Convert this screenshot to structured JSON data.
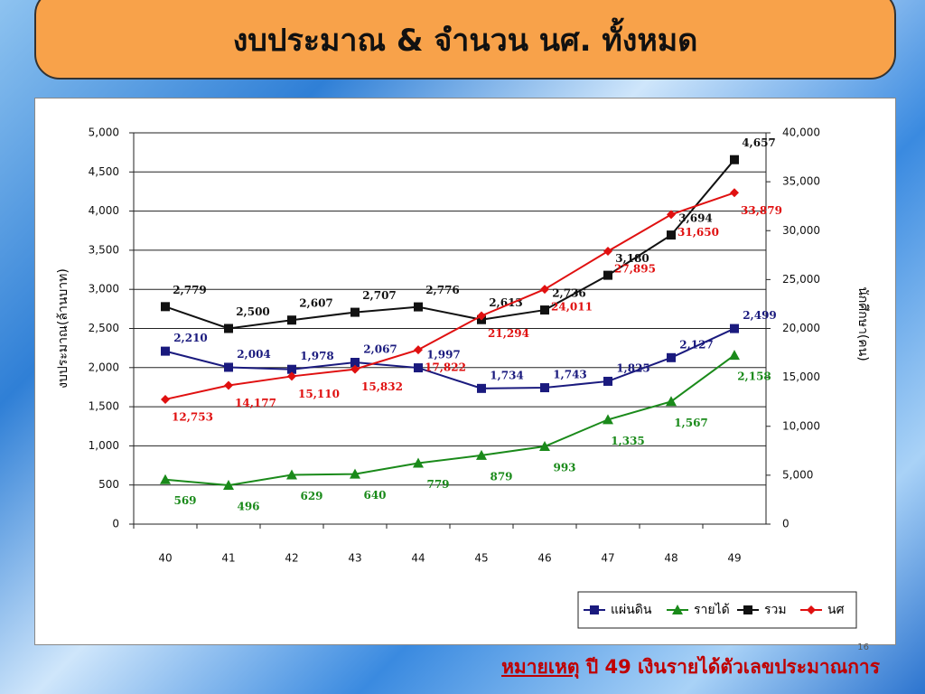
{
  "chart_data": {
    "type": "line",
    "title": "งบประมาณ & จำนวน นศ. ทั้งหมด",
    "y_label": "งบประมาณ(ล้านบาท)",
    "y2_label": "นักศึกษา(คน)",
    "categories": [
      "40",
      "41",
      "42",
      "43",
      "44",
      "45",
      "46",
      "47",
      "48",
      "49"
    ],
    "ylim": [
      0,
      5000
    ],
    "yticks": [
      0,
      500,
      {
        "value": 1000,
        "label": "1,000"
      },
      {
        "value": 1500,
        "label": "1,500"
      },
      {
        "value": 2000,
        "label": "2,000"
      },
      {
        "value": 2500,
        "label": "2,500"
      },
      {
        "value": 3000,
        "label": "3,000"
      },
      {
        "value": 3500,
        "label": "3,500"
      },
      {
        "value": 4000,
        "label": "4,000"
      },
      {
        "value": 4500,
        "label": "4,500"
      },
      {
        "value": 5000,
        "label": "5,000"
      }
    ],
    "y2lim": [
      0,
      40000
    ],
    "y2ticks": [
      0,
      {
        "value": 5000,
        "label": "5,000"
      },
      {
        "value": 10000,
        "label": "10,000"
      },
      {
        "value": 15000,
        "label": "15,000"
      },
      {
        "value": 20000,
        "label": "20,000"
      },
      {
        "value": 25000,
        "label": "25,000"
      },
      {
        "value": 30000,
        "label": "30,000"
      },
      {
        "value": 35000,
        "label": "35,000"
      },
      {
        "value": 40000,
        "label": "40,000"
      }
    ],
    "grid": true,
    "legend": "bottom-right",
    "series": [
      {
        "name": "แผ่นดิน",
        "color": "#1a1a7e",
        "marker": "square",
        "values": [
          2210,
          2004,
          1978,
          2067,
          1997,
          1734,
          1743,
          1825,
          2127,
          2499
        ],
        "value_labels": [
          "2,210",
          "2,004",
          "1,978",
          "2,067",
          "1,997",
          "1,734",
          "1,743",
          "1,825",
          "2,127",
          "2,499"
        ]
      },
      {
        "name": "รายได้",
        "color": "#1a8a1a",
        "marker": "triangle",
        "values": [
          569,
          496,
          629,
          640,
          779,
          879,
          993,
          1335,
          1567,
          2158
        ],
        "value_labels": [
          "569",
          "496",
          "629",
          "640",
          "779",
          "879",
          "993",
          "1,335",
          "1,567",
          "2,158"
        ]
      },
      {
        "name": "รวม",
        "color": "#111111",
        "marker": "square",
        "values": [
          2779,
          2500,
          2607,
          2707,
          2776,
          2613,
          2736,
          3180,
          3694,
          4657
        ],
        "value_labels": [
          "2,779",
          "2,500",
          "2,607",
          "2,707",
          "2,776",
          "2,613",
          "2,736",
          "3,180",
          "3,694",
          "4,657"
        ]
      },
      {
        "name": "นศ",
        "color": "#e01010",
        "marker": "diamond",
        "axis": "y2",
        "values": [
          12753,
          14177,
          15110,
          15832,
          17822,
          21294,
          24011,
          27895,
          31650,
          33879
        ],
        "value_labels": [
          "12,753",
          "14,177",
          "15,110",
          "15,832",
          "17,822",
          "21,294",
          "24,011",
          "27,895",
          "31,650",
          "33,879"
        ]
      }
    ]
  },
  "footer": {
    "note_label": "หมายเหตุ",
    "note": "ปี 49 เงินรายได้ตัวเลขประมาณการ",
    "page": "16"
  }
}
